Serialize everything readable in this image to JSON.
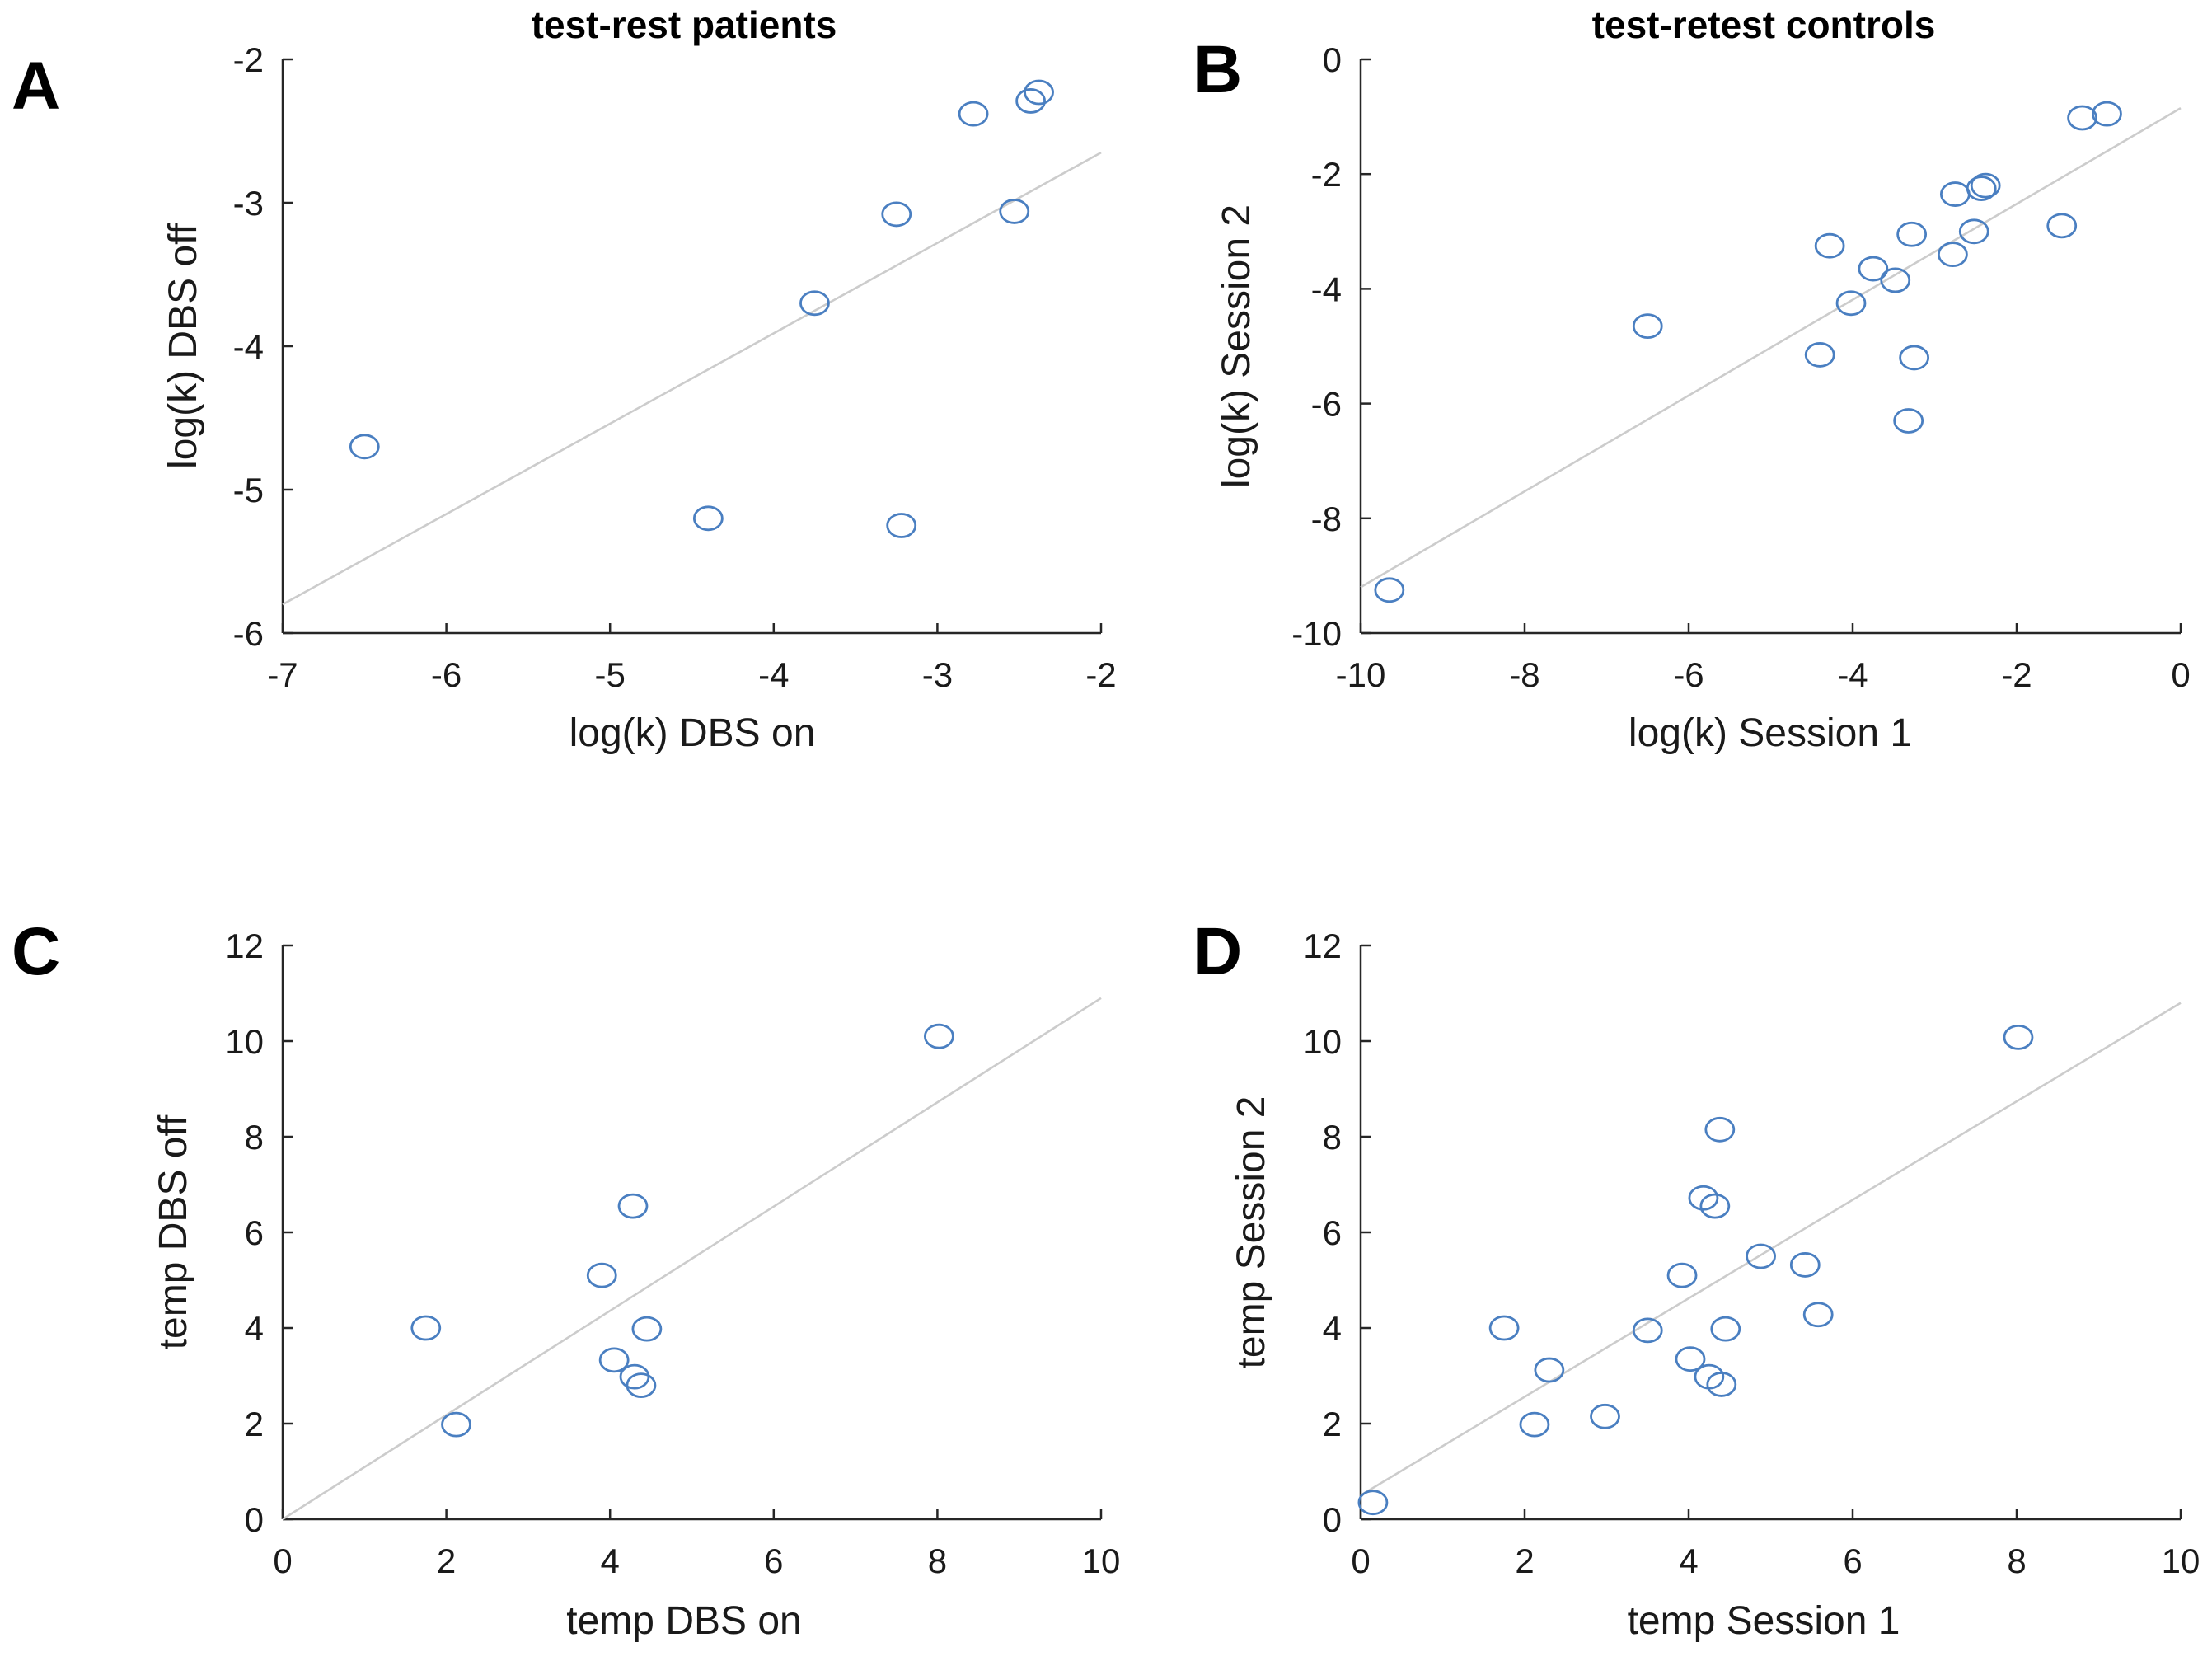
{
  "chart_data": [
    {
      "panel": "A",
      "type": "scatter",
      "title": "test-rest patients",
      "xlabel": "log(k) DBS on",
      "ylabel": "log(k) DBS off",
      "xlim": [
        -7,
        -2
      ],
      "ylim": [
        -6,
        -2
      ],
      "xticks": [
        "-7",
        "-6",
        "-5",
        "-4",
        "-3",
        "-2"
      ],
      "yticks": [
        "-6",
        "-5",
        "-4",
        "-3",
        "-2"
      ],
      "fit_line": [
        [
          -7,
          -5.8
        ],
        [
          -2,
          -2.65
        ]
      ],
      "points": [
        [
          -6.5,
          -4.7
        ],
        [
          -4.4,
          -5.2
        ],
        [
          -3.75,
          -3.7
        ],
        [
          -3.25,
          -3.08
        ],
        [
          -3.22,
          -5.25
        ],
        [
          -2.78,
          -2.38
        ],
        [
          -2.53,
          -3.06
        ],
        [
          -2.43,
          -2.29
        ],
        [
          -2.38,
          -2.23
        ]
      ]
    },
    {
      "panel": "B",
      "type": "scatter",
      "title": "test-retest controls",
      "xlabel": "log(k) Session 1",
      "ylabel": "log(k) Session 2",
      "xlim": [
        -10,
        0
      ],
      "ylim": [
        -10,
        0
      ],
      "xticks": [
        "-10",
        "-8",
        "-6",
        "-4",
        "-2",
        "0"
      ],
      "yticks": [
        "-10",
        "-8",
        "-6",
        "-4",
        "-2",
        "0"
      ],
      "fit_line": [
        [
          -10,
          -9.2
        ],
        [
          0,
          -0.85
        ]
      ],
      "points": [
        [
          -9.65,
          -9.25
        ],
        [
          -6.5,
          -4.65
        ],
        [
          -4.4,
          -5.15
        ],
        [
          -4.28,
          -3.25
        ],
        [
          -4.02,
          -4.25
        ],
        [
          -3.75,
          -3.65
        ],
        [
          -3.48,
          -3.85
        ],
        [
          -3.32,
          -6.3
        ],
        [
          -3.28,
          -3.05
        ],
        [
          -3.25,
          -5.2
        ],
        [
          -2.78,
          -3.4
        ],
        [
          -2.75,
          -2.35
        ],
        [
          -2.52,
          -3.0
        ],
        [
          -2.43,
          -2.25
        ],
        [
          -2.38,
          -2.2
        ],
        [
          -1.45,
          -2.9
        ],
        [
          -1.2,
          -1.02
        ],
        [
          -0.9,
          -0.95
        ]
      ]
    },
    {
      "panel": "C",
      "type": "scatter",
      "title": "",
      "xlabel": "temp DBS on",
      "ylabel": "temp DBS off",
      "xlim": [
        0,
        10
      ],
      "ylim": [
        0,
        12
      ],
      "xticks": [
        "0",
        "2",
        "4",
        "6",
        "8",
        "10"
      ],
      "yticks": [
        "0",
        "2",
        "4",
        "6",
        "8",
        "10",
        "12"
      ],
      "fit_line": [
        [
          0,
          0
        ],
        [
          10,
          10.9
        ]
      ],
      "points": [
        [
          1.75,
          4.0
        ],
        [
          2.12,
          1.98
        ],
        [
          3.9,
          5.1
        ],
        [
          4.05,
          3.33
        ],
        [
          4.28,
          6.55
        ],
        [
          4.3,
          2.98
        ],
        [
          4.38,
          2.8
        ],
        [
          4.45,
          3.98
        ],
        [
          8.02,
          10.1
        ]
      ]
    },
    {
      "panel": "D",
      "type": "scatter",
      "title": "",
      "xlabel": "temp Session 1",
      "ylabel": "temp Session 2",
      "xlim": [
        0,
        10
      ],
      "ylim": [
        0,
        12
      ],
      "xticks": [
        "0",
        "2",
        "4",
        "6",
        "8",
        "10"
      ],
      "yticks": [
        "0",
        "2",
        "4",
        "6",
        "8",
        "10",
        "12"
      ],
      "fit_line": [
        [
          0,
          0.5
        ],
        [
          10,
          10.8
        ]
      ],
      "points": [
        [
          0.15,
          0.35
        ],
        [
          1.75,
          4.0
        ],
        [
          2.12,
          1.98
        ],
        [
          2.3,
          3.12
        ],
        [
          2.98,
          2.15
        ],
        [
          3.5,
          3.95
        ],
        [
          3.92,
          5.1
        ],
        [
          4.02,
          3.35
        ],
        [
          4.18,
          6.72
        ],
        [
          4.25,
          2.98
        ],
        [
          4.32,
          6.55
        ],
        [
          4.38,
          8.15
        ],
        [
          4.4,
          2.82
        ],
        [
          4.45,
          3.98
        ],
        [
          4.88,
          5.5
        ],
        [
          5.42,
          5.32
        ],
        [
          5.58,
          4.28
        ],
        [
          8.02,
          10.08
        ]
      ]
    }
  ]
}
